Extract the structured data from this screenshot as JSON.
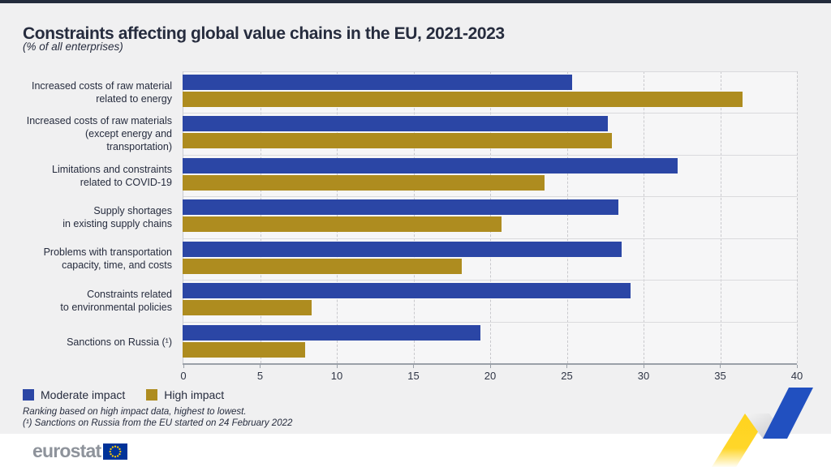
{
  "header": {
    "title": "Constraints affecting global value chains in the EU, 2021-2023",
    "subtitle": "(% of all enterprises)"
  },
  "chart_data": {
    "type": "bar",
    "orientation": "horizontal",
    "title": "Constraints affecting global value chains in the EU, 2021-2023",
    "subtitle": "(% of all enterprises)",
    "categories": [
      "Increased costs of raw material related to energy",
      "Increased costs of raw materials (except energy and transportation)",
      "Limitations and constraints related to COVID-19",
      "Supply shortages in existing supply chains",
      "Problems with transportation capacity, time, and costs",
      "Constraints related to environmental policies",
      "Sanctions on Russia (¹)"
    ],
    "category_lines": [
      [
        "Increased costs of raw material",
        "related to energy"
      ],
      [
        "Increased costs of raw materials",
        "(except energy and transportation)"
      ],
      [
        "Limitations and constraints",
        "related to COVID-19"
      ],
      [
        "Supply shortages",
        "in existing supply chains"
      ],
      [
        "Problems with transportation",
        "capacity, time, and costs"
      ],
      [
        "Constraints related",
        "to environmental policies"
      ],
      [
        "Sanctions on Russia (¹)"
      ]
    ],
    "series": [
      {
        "name": "Moderate impact",
        "color": "#2b46a5",
        "values": [
          25.4,
          27.7,
          32.3,
          28.4,
          28.6,
          29.2,
          19.4
        ]
      },
      {
        "name": "High impact",
        "color": "#ae8c1f",
        "values": [
          36.5,
          28.0,
          23.6,
          20.8,
          18.2,
          8.4,
          8.0
        ]
      }
    ],
    "xlim": [
      0,
      40
    ],
    "x_ticks": [
      0,
      5,
      10,
      15,
      20,
      25,
      30,
      35,
      40
    ],
    "grid": "vertical-dashed",
    "legend_position": "bottom-left"
  },
  "footnotes": {
    "line1": "Ranking based on high impact data, highest to lowest.",
    "line2": "(¹) Sanctions on Russia from the EU started on 24 February 2022"
  },
  "footer": {
    "logo_text": "eurostat"
  },
  "colors": {
    "bar_moderate": "#2b46a5",
    "bar_high": "#ae8c1f",
    "title_text": "#262c3e",
    "top_border": "#232b3c",
    "page_background": "#f0f0f1",
    "footer_background": "#ffffff",
    "eu_flag_blue": "#003399",
    "eu_star_yellow": "#ffcc00",
    "ribbon_yellow": "#ffd41e",
    "ribbon_blue": "#2150c0",
    "logo_gray": "#8e939b"
  }
}
